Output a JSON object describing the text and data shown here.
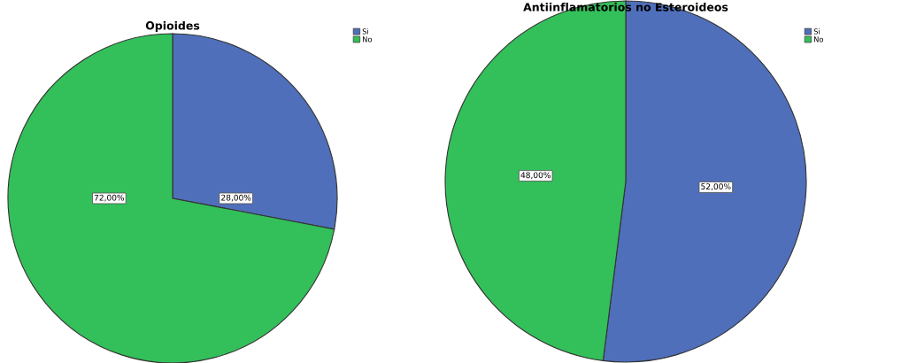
{
  "chart_data": [
    {
      "type": "pie",
      "title": "Opioides",
      "categories": [
        "Si",
        "No"
      ],
      "values": [
        28,
        72
      ],
      "colors": [
        "#4f6fba",
        "#33c05a"
      ],
      "value_labels": [
        "28,00%",
        "72,00%"
      ],
      "legend": "top right"
    },
    {
      "type": "pie",
      "title": "Antiinflamatorios no Esteroideos",
      "categories": [
        "Si",
        "No"
      ],
      "values": [
        52,
        48
      ],
      "colors": [
        "#4f6fba",
        "#33c05a"
      ],
      "value_labels": [
        "52,00%",
        "48,00%"
      ],
      "legend": "top right"
    }
  ]
}
